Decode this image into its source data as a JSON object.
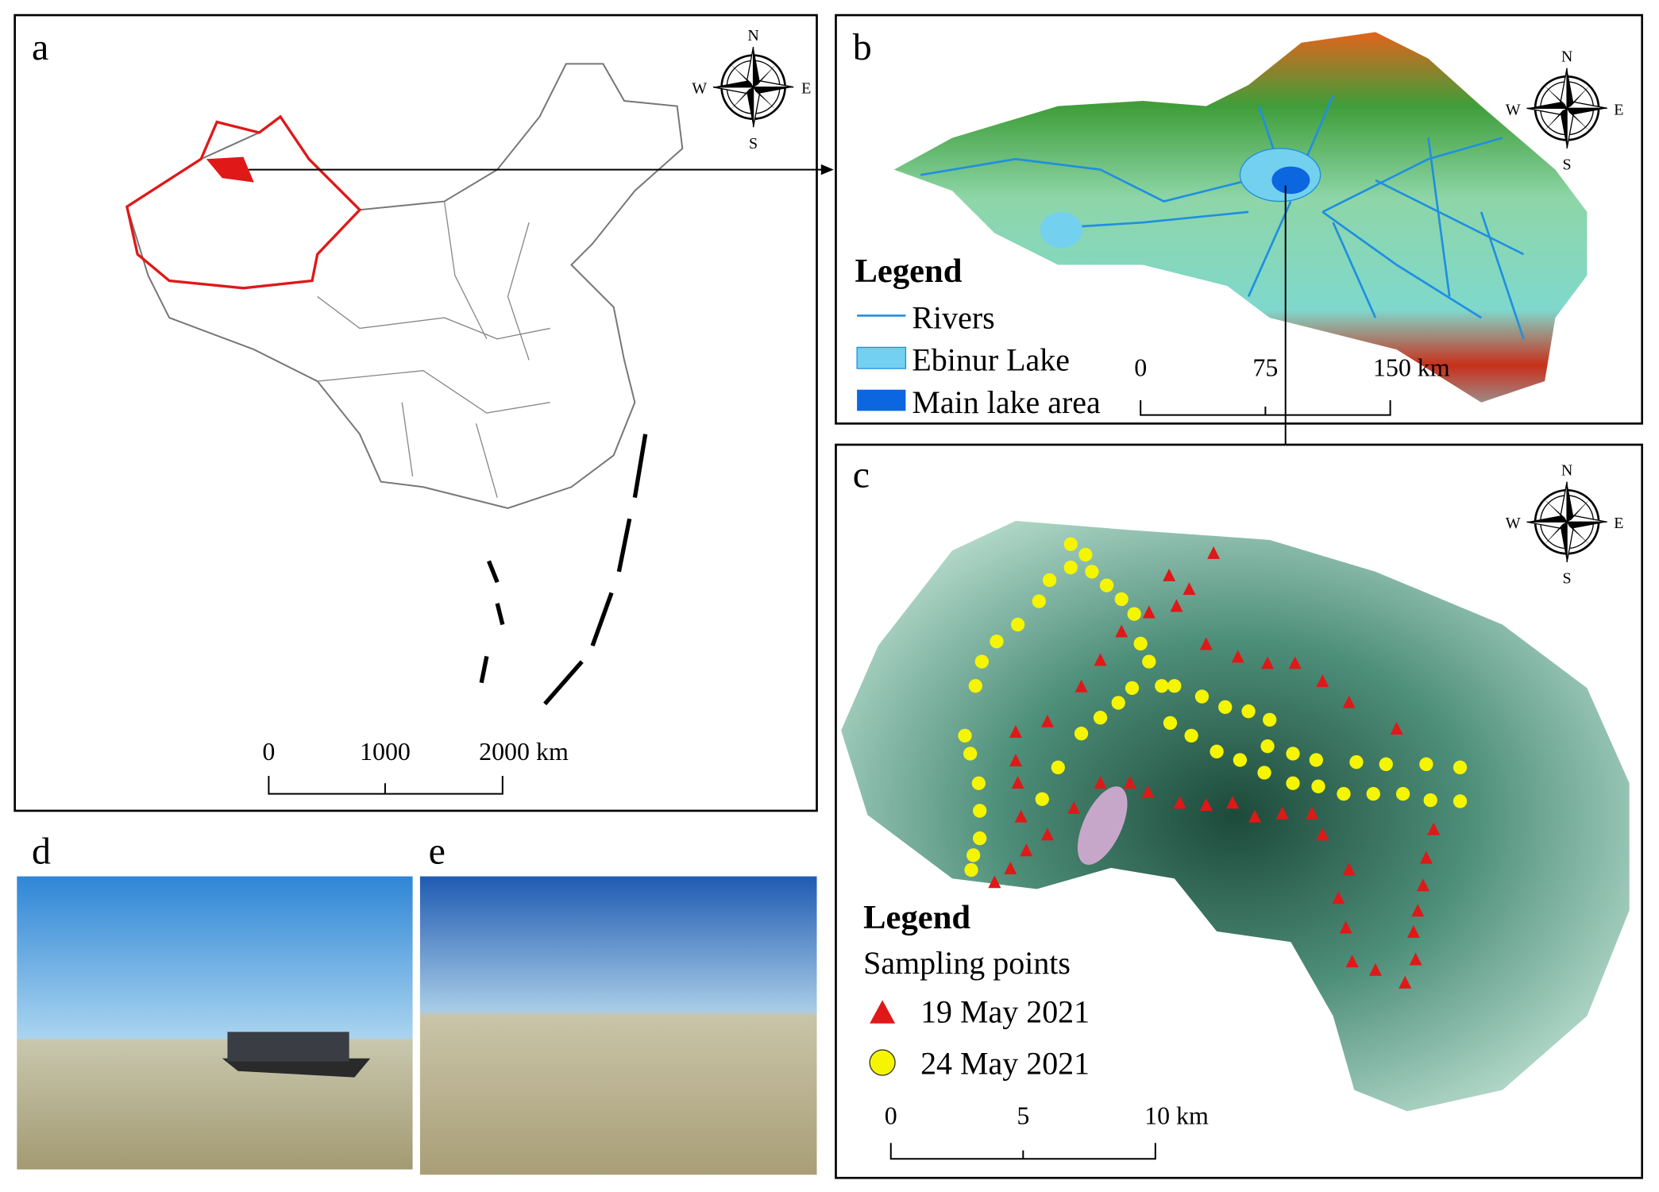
{
  "panel_a": {
    "label": "a",
    "compass": {
      "n": "N",
      "s": "S",
      "w": "W",
      "e": "E"
    },
    "scale_bar": [
      "0",
      "1000",
      "2000 km"
    ]
  },
  "panel_b": {
    "label": "b",
    "compass": {
      "n": "N",
      "s": "S",
      "w": "W",
      "e": "E"
    },
    "legend": {
      "title": "Legend",
      "items": [
        "Rivers",
        "Ebinur Lake",
        "Main lake area"
      ]
    },
    "scale_bar": [
      "0",
      "75",
      "150 km"
    ]
  },
  "panel_c": {
    "label": "c",
    "compass": {
      "n": "N",
      "s": "S",
      "w": "W",
      "e": "E"
    },
    "legend": {
      "title": "Legend",
      "subtitle": "Sampling points",
      "items": [
        "19 May 2021",
        "24 May 2021"
      ]
    },
    "scale_bar": [
      "0",
      "5",
      "10 km"
    ]
  },
  "panel_d": {
    "label": "d"
  },
  "panel_e": {
    "label": "e"
  }
}
